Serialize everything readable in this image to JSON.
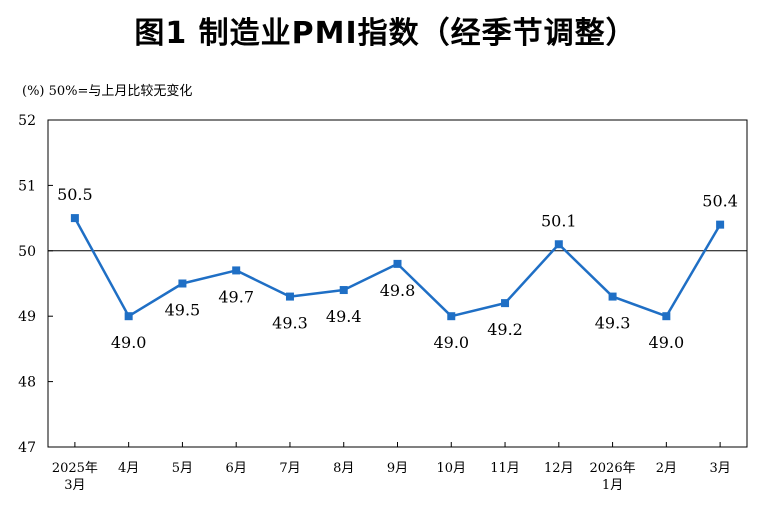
{
  "chart_data": {
    "type": "line",
    "title": "图1  制造业PMI指数（经季节调整）",
    "unit_note": "(%) 50%=与上月比较无变化",
    "categories": [
      "2025年\n3月",
      "4月",
      "5月",
      "6月",
      "7月",
      "8月",
      "9月",
      "10月",
      "11月",
      "12月",
      "2026年\n1月",
      "2月",
      "3月"
    ],
    "series": [
      {
        "name": "制造业PMI",
        "values": [
          50.5,
          49.0,
          49.5,
          49.7,
          49.3,
          49.4,
          49.8,
          49.0,
          49.2,
          50.1,
          49.3,
          49.0,
          50.4
        ],
        "labels": [
          "50.5",
          "49.0",
          "49.5",
          "49.7",
          "49.3",
          "49.4",
          "49.8",
          "49.0",
          "49.2",
          "50.1",
          "49.3",
          "49.0",
          "50.4"
        ],
        "label_pos": [
          "above",
          "below",
          "below",
          "below",
          "below",
          "below",
          "below",
          "below",
          "below",
          "above",
          "below",
          "below",
          "above"
        ],
        "color": "#1f6fc5"
      }
    ],
    "yticks": [
      "47",
      "48",
      "49",
      "50",
      "51",
      "52"
    ],
    "ylim": [
      47,
      52
    ],
    "reference_line": 50,
    "xlabel": "",
    "ylabel": "",
    "legend": "none"
  }
}
